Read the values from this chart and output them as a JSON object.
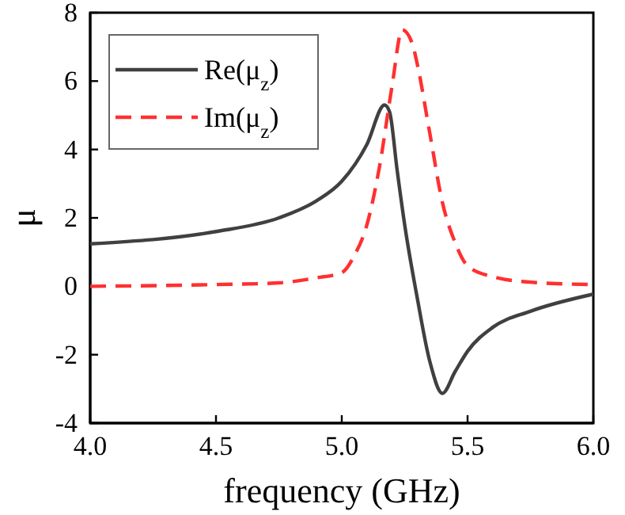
{
  "chart_data": {
    "type": "line",
    "xlabel": "frequency (GHz)",
    "ylabel": "μ",
    "xlim": [
      4.0,
      6.0
    ],
    "xticks": [
      {
        "value": 4.0,
        "label": "4.0"
      },
      {
        "value": 4.5,
        "label": "4.5"
      },
      {
        "value": 5.0,
        "label": "5.0"
      },
      {
        "value": 5.5,
        "label": "5.5"
      },
      {
        "value": 6.0,
        "label": "6.0"
      }
    ],
    "ylim": [
      -4,
      8
    ],
    "yticks": [
      -4,
      -2,
      0,
      2,
      4,
      6,
      8
    ],
    "grid": false,
    "legend": "top left",
    "series": [
      {
        "name": "Re(μ$_{z}$)",
        "color": "#404040",
        "line_style": "solid",
        "x": [
          4.0,
          4.5,
          4.75,
          4.9,
          5.0,
          5.1,
          5.17,
          5.19,
          5.22,
          5.25,
          5.3,
          5.35,
          5.4,
          5.45,
          5.5,
          5.6,
          5.75,
          6.0
        ],
        "values": [
          1.24,
          1.6,
          2.0,
          2.5,
          3.07,
          4.15,
          5.3,
          5.1,
          3.4,
          1.8,
          -0.34,
          -2.2,
          -3.13,
          -2.5,
          -1.9,
          -1.2,
          -0.73,
          -0.23
        ]
      },
      {
        "name": "Im(μ$_{z}$)",
        "color": "#ff3030",
        "line_style": "dashed",
        "x": [
          4.0,
          4.5,
          4.75,
          4.9,
          5.0,
          5.05,
          5.1,
          5.15,
          5.2,
          5.24,
          5.28,
          5.3,
          5.35,
          5.4,
          5.45,
          5.5,
          5.6,
          5.75,
          6.0
        ],
        "values": [
          0.0,
          0.05,
          0.1,
          0.25,
          0.4,
          0.9,
          1.8,
          3.5,
          5.86,
          7.5,
          7.1,
          6.5,
          4.47,
          2.45,
          1.29,
          0.6,
          0.28,
          0.12,
          0.05
        ]
      }
    ]
  }
}
